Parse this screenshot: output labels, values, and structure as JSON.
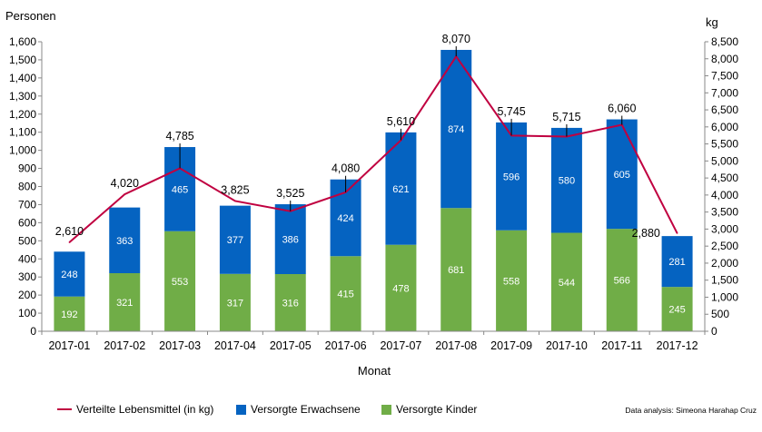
{
  "chart_data": {
    "type": "bar",
    "stacked": true,
    "categories": [
      "2017-01",
      "2017-02",
      "2017-03",
      "2017-04",
      "2017-05",
      "2017-06",
      "2017-07",
      "2017-08",
      "2017-09",
      "2017-10",
      "2017-11",
      "2017-12"
    ],
    "series": [
      {
        "name": "Versorgte Kinder",
        "type": "bar",
        "axis": "left",
        "color": "#70AD47",
        "values": [
          192,
          321,
          553,
          317,
          316,
          415,
          478,
          681,
          558,
          544,
          566,
          245
        ]
      },
      {
        "name": "Versorgte Erwachsene",
        "type": "bar",
        "axis": "left",
        "color": "#0563C1",
        "values": [
          248,
          363,
          465,
          377,
          386,
          424,
          621,
          874,
          596,
          580,
          605,
          281
        ]
      },
      {
        "name": "Verteilte Lebensmittel (in kg)",
        "type": "line",
        "axis": "right",
        "color": "#C00040",
        "values": [
          2610,
          4020,
          4785,
          3825,
          3525,
          4080,
          5610,
          8070,
          5745,
          5715,
          6060,
          2880
        ]
      }
    ],
    "legend_order": [
      "Verteilte Lebensmittel (in kg)",
      "Versorgte Erwachsene",
      "Versorgte Kinder"
    ],
    "legend_position": "bottom-left",
    "y_left": {
      "label": "Personen",
      "ylim": [
        0,
        1600
      ],
      "ticks": [
        "0",
        "100",
        "200",
        "300",
        "400",
        "500",
        "600",
        "700",
        "800",
        "900",
        "1,000",
        "1,100",
        "1,200",
        "1,300",
        "1,400",
        "1,500",
        "1,600"
      ]
    },
    "y_right": {
      "label": "kg",
      "ylim": [
        0,
        8500
      ],
      "ticks": [
        "0",
        "500",
        "1,000",
        "1,500",
        "2,000",
        "2,500",
        "3,000",
        "3,500",
        "4,000",
        "4,500",
        "5,000",
        "5,500",
        "6,000",
        "6,500",
        "7,000",
        "7,500",
        "8,000",
        "8,500"
      ]
    },
    "xlabel": "Monat",
    "grid": false,
    "credit": "Data analysis: Simeona Harahap Cruz"
  }
}
